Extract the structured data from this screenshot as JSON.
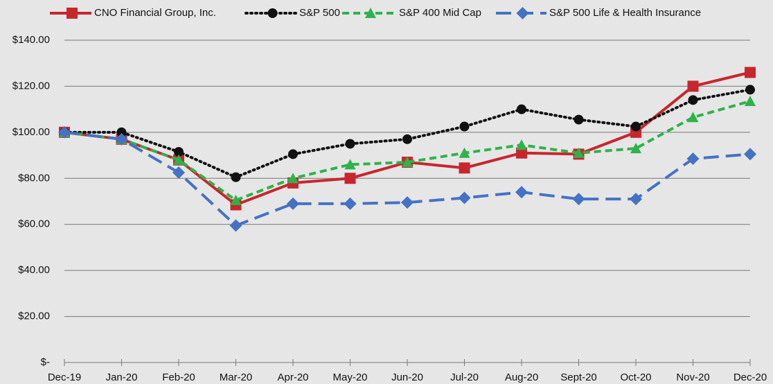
{
  "chart_data": {
    "type": "line",
    "categories": [
      "Dec-19",
      "Jan-20",
      "Feb-20",
      "Mar-20",
      "Apr-20",
      "May-20",
      "Jun-20",
      "Jul-20",
      "Aug-20",
      "Sept-20",
      "Oct-20",
      "Nov-20",
      "Dec-20"
    ],
    "series": [
      {
        "name": "CNO Financial Group, Inc.",
        "color": "#c8262d",
        "dash": "solid",
        "marker": "square",
        "values": [
          100,
          97,
          88,
          68.5,
          78,
          80,
          87,
          84.5,
          91,
          90.5,
          100,
          120,
          126
        ]
      },
      {
        "name": "S&P 500",
        "color": "#111111",
        "dash": "dotted",
        "marker": "circle",
        "values": [
          100,
          100,
          91.5,
          80.5,
          90.5,
          95,
          97,
          102.5,
          110,
          105.5,
          102.5,
          114,
          118.5
        ]
      },
      {
        "name": "S&P 400 Mid Cap",
        "color": "#2db34a",
        "dash": "dashed",
        "marker": "triangle",
        "values": [
          100,
          97,
          88,
          70.5,
          80,
          86,
          87,
          91,
          94.5,
          91,
          93,
          106.5,
          113.5
        ]
      },
      {
        "name": "S&P 500 Life & Health Insurance",
        "color": "#4472c4",
        "dash": "longdash",
        "marker": "diamond",
        "values": [
          100,
          97,
          82.5,
          59.5,
          69,
          69,
          69.5,
          71.5,
          74,
          71,
          71,
          88.5,
          90.5
        ]
      }
    ],
    "ylim": [
      0,
      140
    ],
    "yticks": [
      {
        "value": 0,
        "label": "$-"
      },
      {
        "value": 20,
        "label": "$20.00"
      },
      {
        "value": 40,
        "label": "$40.00"
      },
      {
        "value": 60,
        "label": "$60.00"
      },
      {
        "value": 80,
        "label": "$80.00"
      },
      {
        "value": 100,
        "label": "$100.00"
      },
      {
        "value": 120,
        "label": "$120.00"
      },
      {
        "value": 140,
        "label": "$140.00"
      }
    ],
    "grid": true,
    "legend": "top"
  }
}
